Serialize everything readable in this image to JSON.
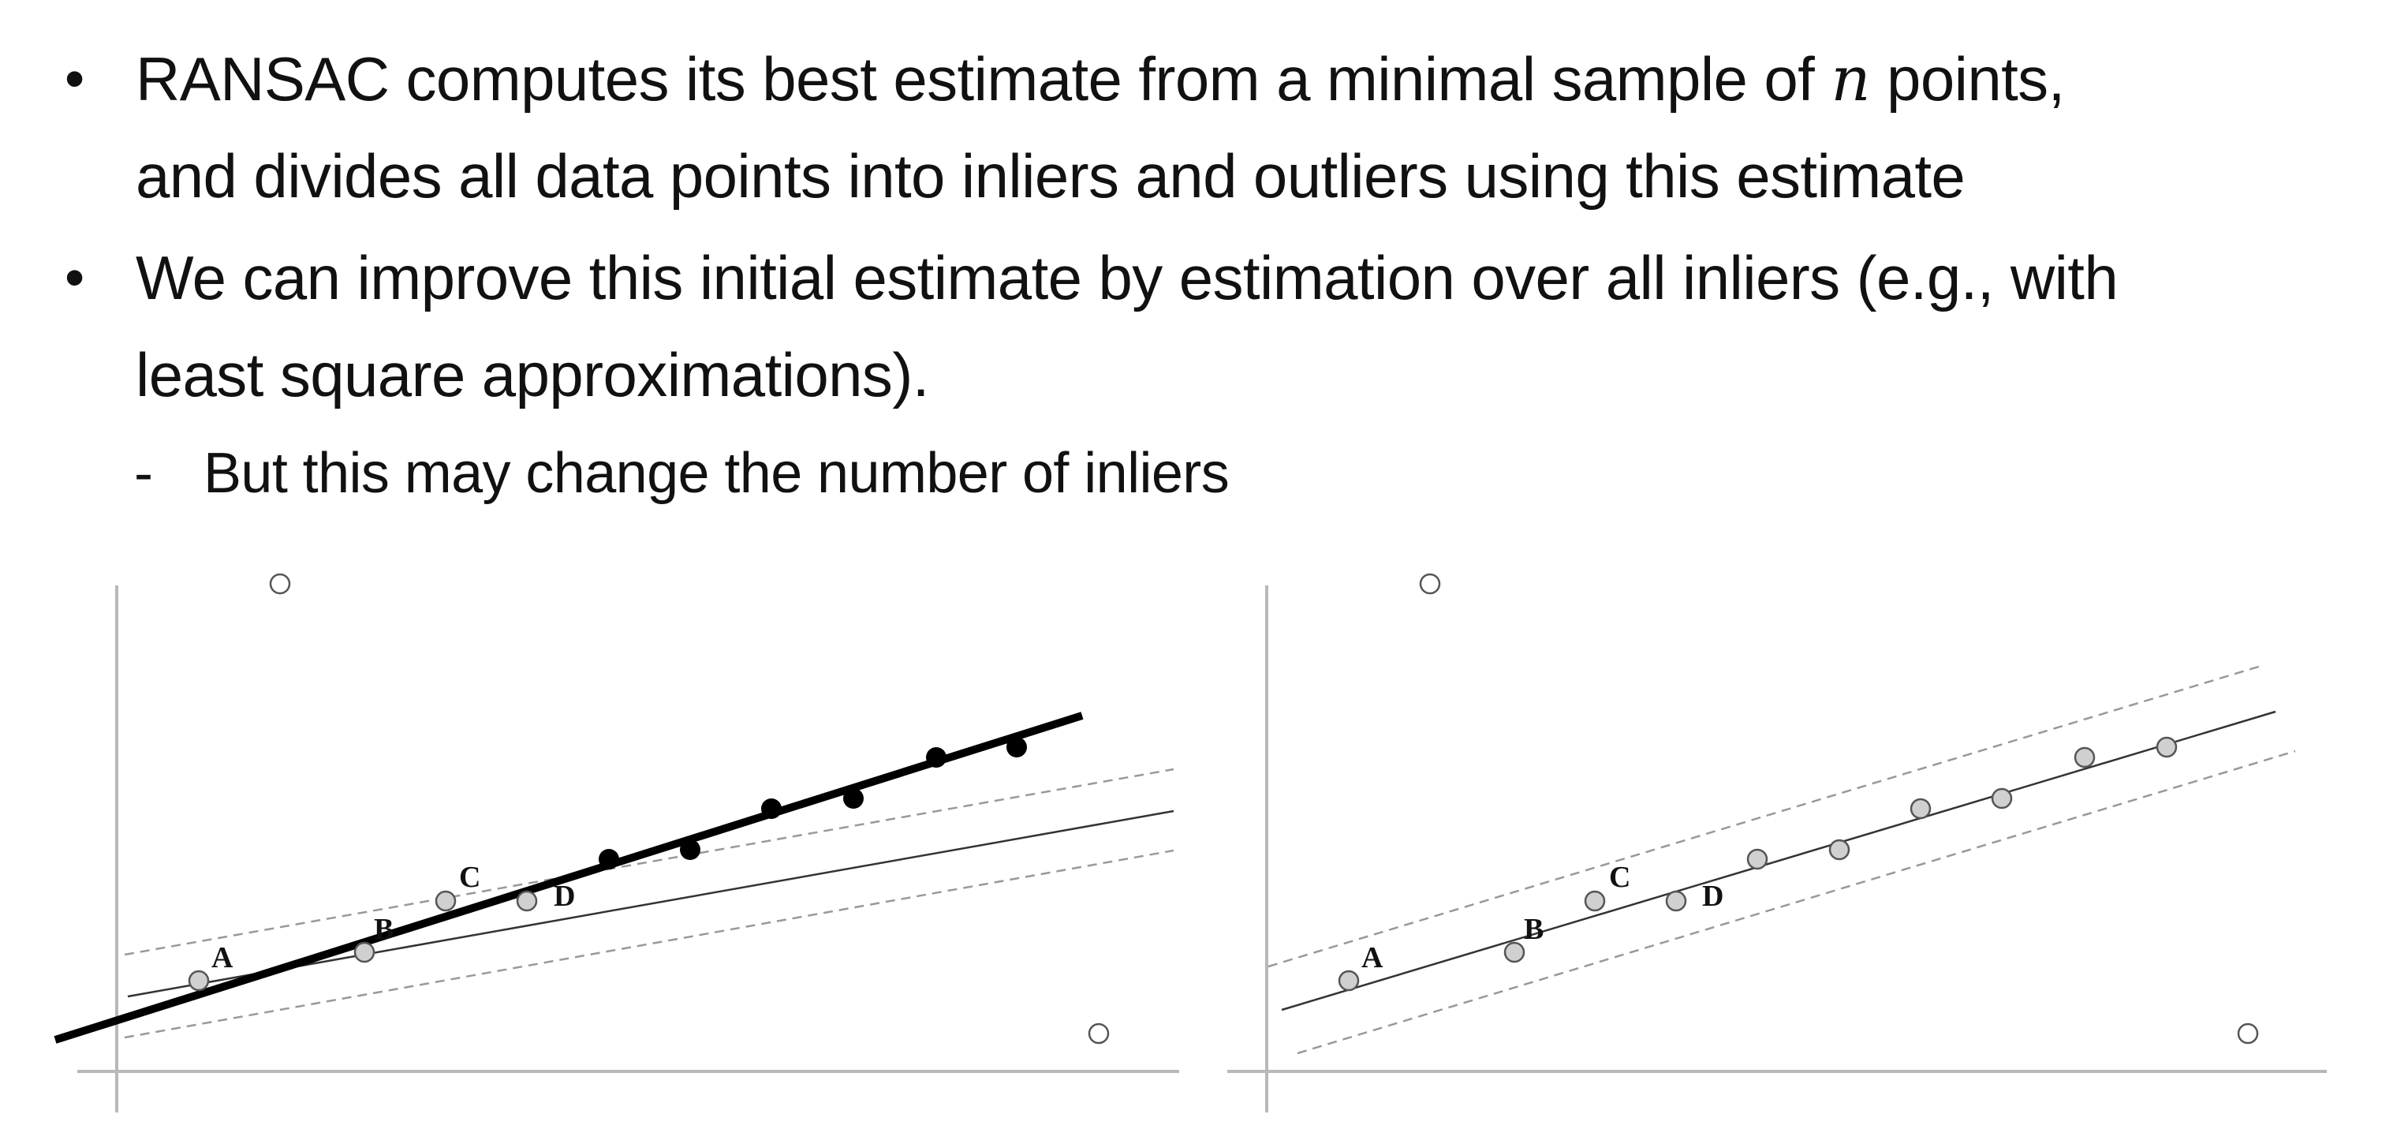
{
  "bullets": [
    {
      "pre": "RANSAC computes its best estimate from a minimal sample of ",
      "math": "n",
      "post": " points,",
      "line2": "and divides all data points into inliers and outliers using this estimate"
    },
    {
      "line1": "We can improve this initial estimate by estimation over all inliers (e.g., with",
      "line2": "least square approximations)."
    }
  ],
  "sub_bullet": {
    "marker": "-",
    "text": "But this may change the number of inliers"
  },
  "figures": {
    "point_labels": [
      "A",
      "B",
      "C",
      "D"
    ]
  }
}
